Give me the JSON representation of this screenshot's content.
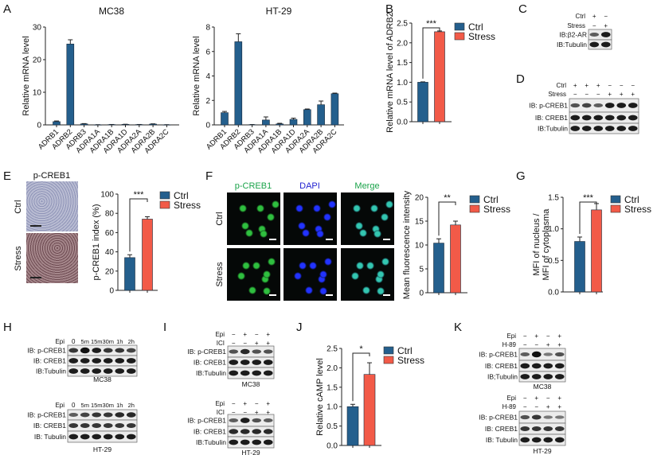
{
  "panels": {
    "A": "A",
    "B": "B",
    "C": "C",
    "D": "D",
    "E": "E",
    "F": "F",
    "G": "G",
    "H": "H",
    "I": "I",
    "J": "J",
    "K": "K"
  },
  "colors": {
    "ctrl": "#245f8d",
    "stress": "#f25a48"
  },
  "legend": {
    "ctrl": "Ctrl",
    "stress": "Stress"
  },
  "chart_data": [
    {
      "id": "A-MC38",
      "type": "bar",
      "title": "MC38",
      "ylabel": "Relative mRNA level",
      "ylim": [
        0,
        30
      ],
      "yticks": [
        "0",
        "10",
        "20",
        "30"
      ],
      "categories": [
        "ADRB1",
        "ADRB2",
        "ADRB3",
        "ADRA1A",
        "ADRA1B",
        "ADRA1D",
        "ADRA2A",
        "ADRA2B",
        "ADRA2C"
      ],
      "values": [
        1.0,
        24.8,
        0.3,
        0.05,
        0.1,
        0.15,
        0.1,
        0.25,
        0.05
      ],
      "errors": [
        0.2,
        1.3,
        0.1,
        0.02,
        0.03,
        0.05,
        0.03,
        0.08,
        0.02
      ]
    },
    {
      "id": "A-HT29",
      "type": "bar",
      "title": "HT-29",
      "ylabel": "Relative mRNA level",
      "ylim": [
        0,
        8
      ],
      "yticks": [
        "0",
        "2",
        "4",
        "6",
        "8"
      ],
      "categories": [
        "ADRB1",
        "ADRB2",
        "ADRB3",
        "ADRA1A",
        "ADRA1B",
        "ADRA1D",
        "ADRA2A",
        "ADRA2B",
        "ADRA2C"
      ],
      "values": [
        1.0,
        6.8,
        0.02,
        0.4,
        0.08,
        0.45,
        1.25,
        1.65,
        2.55
      ],
      "errors": [
        0.1,
        0.65,
        0.01,
        0.25,
        0.05,
        0.1,
        0.05,
        0.3,
        0.05
      ]
    },
    {
      "id": "B",
      "type": "bar",
      "title": "",
      "ylabel": "Relative mRNA level of ADRB2",
      "ylim": [
        0,
        2.5
      ],
      "yticks": [
        "0.0",
        "0.5",
        "1.0",
        "1.5",
        "2.0",
        "2.5"
      ],
      "categories": [
        "Ctrl",
        "Stress"
      ],
      "values": [
        1.0,
        2.28
      ],
      "errors": [
        0.01,
        0.02
      ],
      "significance": "***"
    },
    {
      "id": "E",
      "type": "bar",
      "title": "",
      "ylabel": "p-CREB1 index (%)",
      "ylim": [
        0,
        100
      ],
      "yticks": [
        "0",
        "20",
        "40",
        "60",
        "80",
        "100"
      ],
      "categories": [
        "Ctrl",
        "Stress"
      ],
      "values": [
        34,
        74
      ],
      "errors": [
        3,
        2.5
      ],
      "significance": "***"
    },
    {
      "id": "F",
      "type": "bar",
      "title": "",
      "ylabel": "Mean fluorescence intensity",
      "ylim": [
        0,
        20
      ],
      "yticks": [
        "0",
        "5",
        "10",
        "15",
        "20"
      ],
      "categories": [
        "Ctrl",
        "Stress"
      ],
      "values": [
        10.4,
        14.2
      ],
      "errors": [
        0.9,
        0.8
      ],
      "significance": "**"
    },
    {
      "id": "G",
      "type": "bar",
      "title": "",
      "ylabel": "MFI of nucleus /",
      "ylabel2": "MFI of cytoplasma",
      "ylim": [
        0,
        1.5
      ],
      "yticks": [
        "0.0",
        "0.5",
        "1.0",
        "1.5"
      ],
      "categories": [
        "Ctrl",
        "Stress"
      ],
      "values": [
        0.8,
        1.3
      ],
      "errors": [
        0.07,
        0.1
      ],
      "significance": "***"
    },
    {
      "id": "J",
      "type": "bar",
      "title": "",
      "ylabel": "Relative cAMP level",
      "ylim": [
        0,
        2.5
      ],
      "yticks": [
        "0.0",
        "0.5",
        "1.0",
        "1.5",
        "2.0",
        "2.5"
      ],
      "categories": [
        "Ctrl",
        "Stress"
      ],
      "values": [
        1.0,
        1.83
      ],
      "errors": [
        0.06,
        0.3
      ],
      "significance": "*"
    }
  ],
  "images": {
    "E": {
      "title": "p-CREB1",
      "rows": [
        "Ctrl",
        "Stress"
      ]
    },
    "F": {
      "columns": [
        "p-CREB1",
        "DAPI",
        "Merge"
      ],
      "rows": [
        "Ctrl",
        "Stress"
      ],
      "column_colors": [
        "#1aa34a",
        "#1f1fd0",
        "#1aa34a"
      ]
    }
  },
  "blots": [
    {
      "id": "C",
      "conditions": [
        {
          "label": "Ctrl",
          "marks": [
            "+",
            "−"
          ]
        },
        {
          "label": "Stress",
          "marks": [
            "−",
            "+"
          ]
        }
      ],
      "rows": [
        "IB:β2-AR",
        "IB:Tubulin"
      ],
      "cell_line": ""
    },
    {
      "id": "D",
      "conditions": [
        {
          "label": "Ctrl",
          "marks": [
            "+",
            "+",
            "+",
            "−",
            "−",
            "−"
          ]
        },
        {
          "label": "Stress",
          "marks": [
            "−",
            "−",
            "−",
            "+",
            "+",
            "+"
          ]
        }
      ],
      "rows": [
        "IB: p-CREB1",
        "IB: CREB1",
        "IB:Tubulin"
      ],
      "cell_line": ""
    },
    {
      "id": "H1",
      "conditions": [
        {
          "label": "Epi",
          "marks": [
            "0",
            "5m",
            "15m",
            "30m",
            "1h",
            "2h"
          ]
        }
      ],
      "rows": [
        "IB: p-CREB1",
        "IB: CREB1",
        "IB:Tubulin"
      ],
      "cell_line": "MC38"
    },
    {
      "id": "H2",
      "conditions": [
        {
          "label": "Epi",
          "marks": [
            "0",
            "5m",
            "15m",
            "30m",
            "1h",
            "2h"
          ]
        }
      ],
      "rows": [
        "IB: p-CREB1",
        "IB: CREB1",
        "IB: Tubulin"
      ],
      "cell_line": "HT-29"
    },
    {
      "id": "I1",
      "conditions": [
        {
          "label": "Epi",
          "marks": [
            "−",
            "+",
            "−",
            "+"
          ]
        },
        {
          "label": "ICI",
          "marks": [
            "−",
            "−",
            "+",
            "+"
          ]
        }
      ],
      "rows": [
        "IB: p-CREB1",
        "IB: CREB1",
        "IB:Tubulin"
      ],
      "cell_line": "MC38"
    },
    {
      "id": "I2",
      "conditions": [
        {
          "label": "Epi",
          "marks": [
            "−",
            "+",
            "−",
            "+"
          ]
        },
        {
          "label": "ICI",
          "marks": [
            "−",
            "−",
            "+",
            "+"
          ]
        }
      ],
      "rows": [
        "IB: p-CREB1",
        "IB: CREB1",
        "IB:Tubulin"
      ],
      "cell_line": "HT-29"
    },
    {
      "id": "K1",
      "conditions": [
        {
          "label": "Epi",
          "marks": [
            "−",
            "+",
            "−",
            "+"
          ]
        },
        {
          "label": "H-89",
          "marks": [
            "−",
            "−",
            "+",
            "+"
          ]
        }
      ],
      "rows": [
        "IB: p-CREB1",
        "IB: CREB1",
        "IB;Tubulin"
      ],
      "cell_line": "MC38"
    },
    {
      "id": "K2",
      "conditions": [
        {
          "label": "Epi",
          "marks": [
            "−",
            "+",
            "−",
            "+"
          ]
        },
        {
          "label": "H-89",
          "marks": [
            "−",
            "−",
            "+",
            "+"
          ]
        }
      ],
      "rows": [
        "IB: p-CREB1",
        "IB: CREB1",
        "IB: Tubulin"
      ],
      "cell_line": "HT-29"
    }
  ]
}
